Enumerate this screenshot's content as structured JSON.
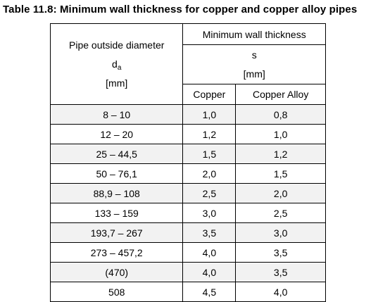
{
  "caption": "Table 11.8: Minimum wall thickness for copper and copper alloy pipes",
  "header": {
    "diameter_label": "Pipe outside diameter",
    "diameter_symbol": "d",
    "diameter_subscript": "a",
    "diameter_unit": "[mm]",
    "thickness_label": "Minimum wall thickness",
    "thickness_symbol": "s",
    "thickness_unit": "[mm]",
    "copper_label": "Copper",
    "alloy_label": "Copper Alloy"
  },
  "rows": [
    {
      "diameter": "8 – 10",
      "copper": "1,0",
      "alloy": "0,8"
    },
    {
      "diameter": "12 – 20",
      "copper": "1,2",
      "alloy": "1,0"
    },
    {
      "diameter": "25 – 44,5",
      "copper": "1,5",
      "alloy": "1,2"
    },
    {
      "diameter": "50 – 76,1",
      "copper": "2,0",
      "alloy": "1,5"
    },
    {
      "diameter": "88,9 – 108",
      "copper": "2,5",
      "alloy": "2,0"
    },
    {
      "diameter": "133 – 159",
      "copper": "3,0",
      "alloy": "2,5"
    },
    {
      "diameter": "193,7 – 267",
      "copper": "3,5",
      "alloy": "3,0"
    },
    {
      "diameter": "273 – 457,2",
      "copper": "4,0",
      "alloy": "3,5"
    },
    {
      "diameter": "(470)",
      "copper": "4,0",
      "alloy": "3,5"
    },
    {
      "diameter": "508",
      "copper": "4,5",
      "alloy": "4,0"
    }
  ]
}
